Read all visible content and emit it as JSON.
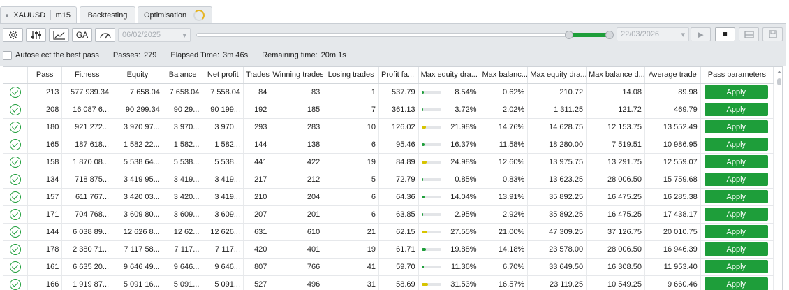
{
  "tabs": [
    {
      "symbol": "XAUUSD",
      "timeframe": "m15"
    },
    {
      "label": "Backtesting"
    },
    {
      "label": "Optimisation"
    }
  ],
  "toolbar": {
    "icons": [
      "gear-icon",
      "sliders-icon",
      "chart-icon",
      "GA",
      "gauge-icon"
    ],
    "date_from": "06/02/2025",
    "date_to": "22/03/2026",
    "right_buttons": [
      "play-icon",
      "stop-icon",
      "report-icon",
      "save-icon"
    ]
  },
  "status": {
    "autoselect_label": "Autoselect the best pass",
    "passes_label": "Passes:",
    "passes_value": "279",
    "elapsed_label": "Elapsed Time:",
    "elapsed_value": "3m 46s",
    "remaining_label": "Remaining time:",
    "remaining_value": "20m 1s"
  },
  "columns": [
    "",
    "Pass",
    "Fitness",
    "Equity",
    "Balance",
    "Net profit",
    "Trades",
    "Winning trades",
    "Losing trades",
    "Profit fa... ▼",
    "Max equity dra...",
    "Max balanc...",
    "Max equity dra...",
    "Max balance d...",
    "Average trade",
    "Pass parameters"
  ],
  "apply_label": "Apply",
  "colors": {
    "accent": "#1e9e3a",
    "bar_yellow": "#d7c400",
    "bar_green": "#1e9e3a"
  },
  "rows": [
    {
      "pass": "213",
      "fitness": "577 939.34",
      "equity": "7 658.04",
      "balance": "7 658.04",
      "net_profit": "7 558.04",
      "trades": "84",
      "winning": "83",
      "losing": "1",
      "profit_factor": "537.79",
      "max_eq_dd_pct": "8.54%",
      "eq_bar": 0.09,
      "eq_bar_color": "green",
      "max_bal_dd_pct": "0.62%",
      "max_eq_dd": "210.72",
      "max_bal_dd": "14.08",
      "avg_trade": "89.98"
    },
    {
      "pass": "208",
      "fitness": "16 087 6...",
      "equity": "90 299.34",
      "balance": "90 29...",
      "net_profit": "90 199...",
      "trades": "192",
      "winning": "185",
      "losing": "7",
      "profit_factor": "361.13",
      "max_eq_dd_pct": "3.72%",
      "eq_bar": 0.04,
      "eq_bar_color": "green",
      "max_bal_dd_pct": "2.02%",
      "max_eq_dd": "1 311.25",
      "max_bal_dd": "121.72",
      "avg_trade": "469.79"
    },
    {
      "pass": "180",
      "fitness": "921 272...",
      "equity": "3 970 97...",
      "balance": "3 970...",
      "net_profit": "3 970...",
      "trades": "293",
      "winning": "283",
      "losing": "10",
      "profit_factor": "126.02",
      "max_eq_dd_pct": "21.98%",
      "eq_bar": 0.22,
      "eq_bar_color": "yellow",
      "max_bal_dd_pct": "14.76%",
      "max_eq_dd": "14 628.75",
      "max_bal_dd": "12 153.75",
      "avg_trade": "13 552.49"
    },
    {
      "pass": "165",
      "fitness": "187 618...",
      "equity": "1 582 22...",
      "balance": "1 582...",
      "net_profit": "1 582...",
      "trades": "144",
      "winning": "138",
      "losing": "6",
      "profit_factor": "95.46",
      "max_eq_dd_pct": "16.37%",
      "eq_bar": 0.16,
      "eq_bar_color": "green",
      "max_bal_dd_pct": "11.58%",
      "max_eq_dd": "18 280.00",
      "max_bal_dd": "7 519.51",
      "avg_trade": "10 986.95"
    },
    {
      "pass": "158",
      "fitness": "1 870 08...",
      "equity": "5 538 64...",
      "balance": "5 538...",
      "net_profit": "5 538...",
      "trades": "441",
      "winning": "422",
      "losing": "19",
      "profit_factor": "84.89",
      "max_eq_dd_pct": "24.98%",
      "eq_bar": 0.25,
      "eq_bar_color": "yellow",
      "max_bal_dd_pct": "12.60%",
      "max_eq_dd": "13 975.75",
      "max_bal_dd": "13 291.75",
      "avg_trade": "12 559.07"
    },
    {
      "pass": "134",
      "fitness": "718 875...",
      "equity": "3 419 95...",
      "balance": "3 419...",
      "net_profit": "3 419...",
      "trades": "217",
      "winning": "212",
      "losing": "5",
      "profit_factor": "72.79",
      "max_eq_dd_pct": "0.85%",
      "eq_bar": 0.01,
      "eq_bar_color": "green",
      "max_bal_dd_pct": "0.83%",
      "max_eq_dd": "13 623.25",
      "max_bal_dd": "28 006.50",
      "avg_trade": "15 759.68"
    },
    {
      "pass": "157",
      "fitness": "611 767...",
      "equity": "3 420 03...",
      "balance": "3 420...",
      "net_profit": "3 419...",
      "trades": "210",
      "winning": "204",
      "losing": "6",
      "profit_factor": "64.36",
      "max_eq_dd_pct": "14.04%",
      "eq_bar": 0.14,
      "eq_bar_color": "green",
      "max_bal_dd_pct": "13.91%",
      "max_eq_dd": "35 892.25",
      "max_bal_dd": "16 475.25",
      "avg_trade": "16 285.38"
    },
    {
      "pass": "171",
      "fitness": "704 768...",
      "equity": "3 609 80...",
      "balance": "3 609...",
      "net_profit": "3 609...",
      "trades": "207",
      "winning": "201",
      "losing": "6",
      "profit_factor": "63.85",
      "max_eq_dd_pct": "2.95%",
      "eq_bar": 0.03,
      "eq_bar_color": "green",
      "max_bal_dd_pct": "2.92%",
      "max_eq_dd": "35 892.25",
      "max_bal_dd": "16 475.25",
      "avg_trade": "17 438.17"
    },
    {
      "pass": "144",
      "fitness": "6 038 89...",
      "equity": "12 626 8...",
      "balance": "12 62...",
      "net_profit": "12 626...",
      "trades": "631",
      "winning": "610",
      "losing": "21",
      "profit_factor": "62.15",
      "max_eq_dd_pct": "27.55%",
      "eq_bar": 0.28,
      "eq_bar_color": "yellow",
      "max_bal_dd_pct": "21.00%",
      "max_eq_dd": "47 309.25",
      "max_bal_dd": "37 126.75",
      "avg_trade": "20 010.75"
    },
    {
      "pass": "178",
      "fitness": "2 380 71...",
      "equity": "7 117 58...",
      "balance": "7 117...",
      "net_profit": "7 117...",
      "trades": "420",
      "winning": "401",
      "losing": "19",
      "profit_factor": "61.71",
      "max_eq_dd_pct": "19.88%",
      "eq_bar": 0.2,
      "eq_bar_color": "green",
      "max_bal_dd_pct": "14.18%",
      "max_eq_dd": "23 578.00",
      "max_bal_dd": "28 006.50",
      "avg_trade": "16 946.39"
    },
    {
      "pass": "161",
      "fitness": "6 635 20...",
      "equity": "9 646 49...",
      "balance": "9 646...",
      "net_profit": "9 646...",
      "trades": "807",
      "winning": "766",
      "losing": "41",
      "profit_factor": "59.70",
      "max_eq_dd_pct": "11.36%",
      "eq_bar": 0.11,
      "eq_bar_color": "green",
      "max_bal_dd_pct": "6.70%",
      "max_eq_dd": "33 649.50",
      "max_bal_dd": "16 308.50",
      "avg_trade": "11 953.40"
    },
    {
      "pass": "166",
      "fitness": "1 919 87...",
      "equity": "5 091 16...",
      "balance": "5 091...",
      "net_profit": "5 091...",
      "trades": "527",
      "winning": "496",
      "losing": "31",
      "profit_factor": "58.69",
      "max_eq_dd_pct": "31.53%",
      "eq_bar": 0.32,
      "eq_bar_color": "yellow",
      "max_bal_dd_pct": "16.57%",
      "max_eq_dd": "23 119.25",
      "max_bal_dd": "10 549.25",
      "avg_trade": "9 660.46"
    }
  ]
}
